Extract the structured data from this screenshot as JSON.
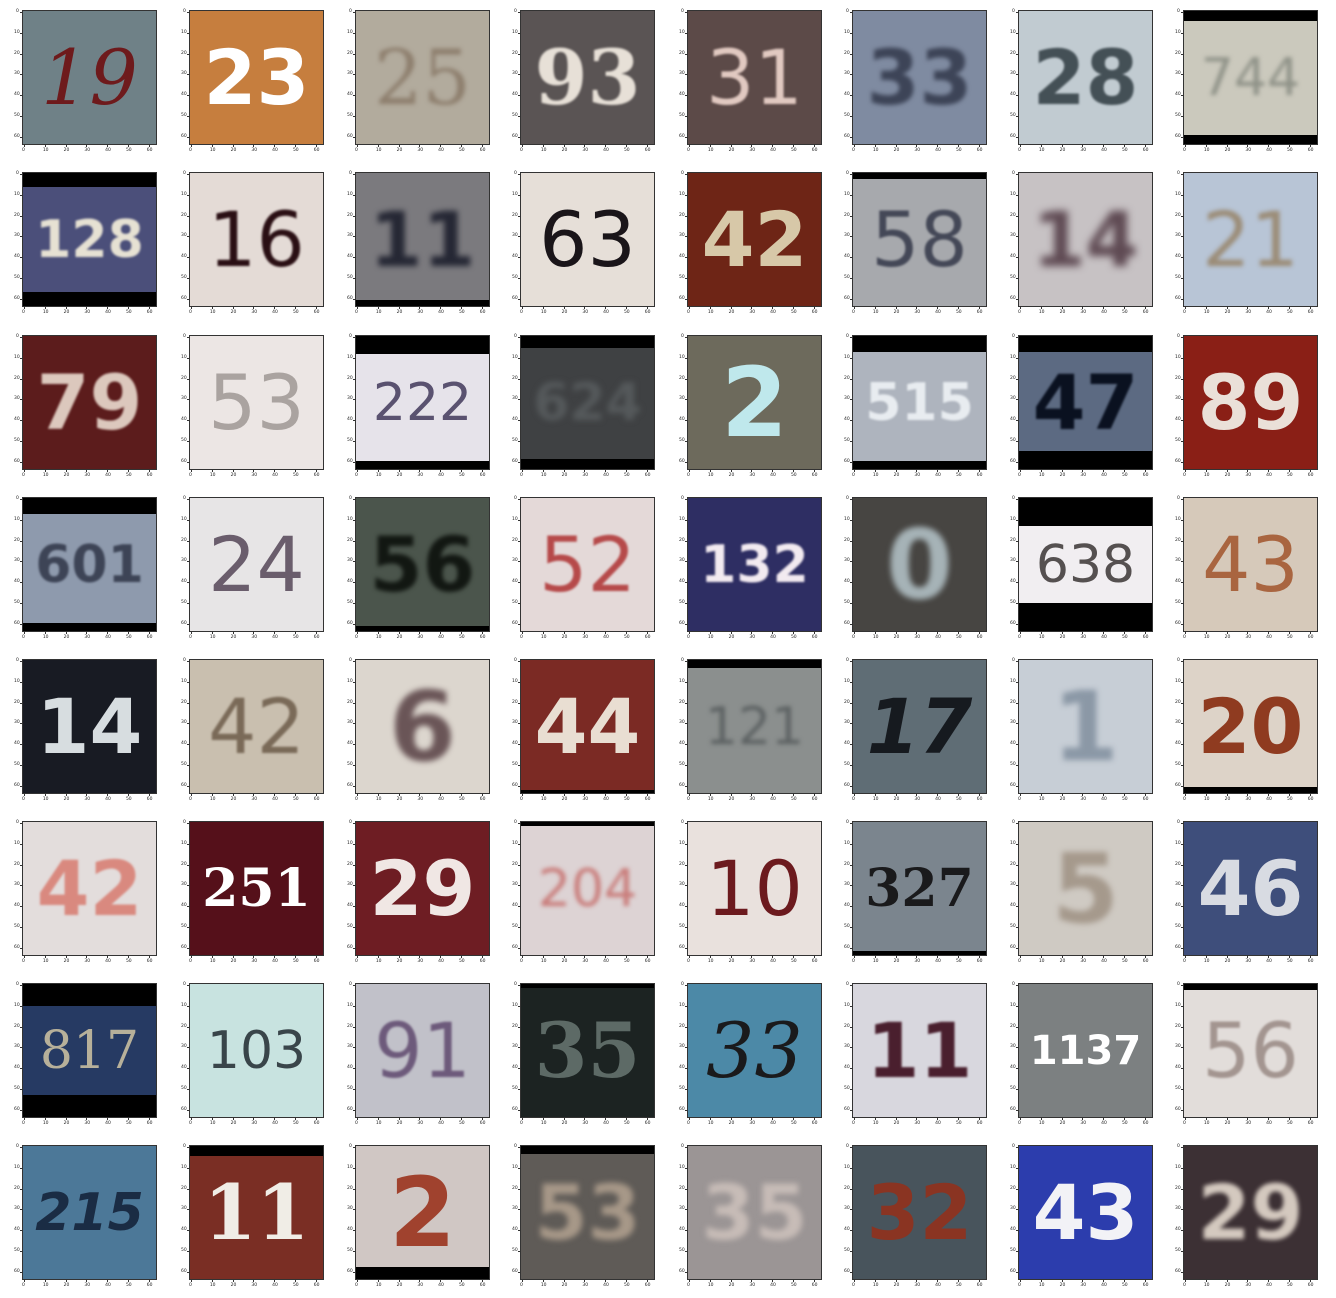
{
  "axis": {
    "x_ticks": [
      "0",
      "10",
      "20",
      "30",
      "40",
      "50",
      "60"
    ],
    "y_ticks": [
      "0",
      "10",
      "20",
      "30",
      "40",
      "50",
      "60"
    ]
  },
  "tiles": [
    {
      "label": "19",
      "bg": "#6f8187",
      "fg": "#6e1a1c",
      "style": "italic",
      "weight": "400",
      "family": "serif"
    },
    {
      "label": "23",
      "bg": "#c67e3e",
      "fg": "#ffffff",
      "style": "normal",
      "weight": "700",
      "family": "sans"
    },
    {
      "label": "25",
      "bg": "#b2ab9d",
      "fg": "#8e7f6e",
      "style": "normal",
      "weight": "400",
      "family": "serif",
      "blur": 2
    },
    {
      "label": "93",
      "bg": "#5a5454",
      "fg": "#e7e0d7",
      "style": "normal",
      "weight": "700",
      "family": "serif",
      "blur": 1
    },
    {
      "label": "31",
      "bg": "#5c4a48",
      "fg": "#e1c9c1",
      "style": "normal",
      "weight": "400",
      "family": "sans",
      "blur": 1
    },
    {
      "label": "33",
      "bg": "#7f8ba1",
      "fg": "#3d4457",
      "style": "normal",
      "weight": "700",
      "family": "sans",
      "blur": 2
    },
    {
      "label": "28",
      "bg": "#c1cbd1",
      "fg": "#445056",
      "style": "normal",
      "weight": "700",
      "family": "sans",
      "blur": 1
    },
    {
      "label": "744",
      "bg": "#cbc9bd",
      "fg": "#8f9288",
      "style": "normal",
      "weight": "400",
      "family": "sans",
      "blur": 2,
      "barTop": 10,
      "barBottom": 9
    },
    {
      "label": "128",
      "bg": "#4b4f7a",
      "fg": "#e6e1d3",
      "style": "normal",
      "weight": "700",
      "family": "sans",
      "blur": 1,
      "barTop": 14,
      "barBottom": 14
    },
    {
      "label": "16",
      "bg": "#e4dbd6",
      "fg": "#2a0f14",
      "style": "normal",
      "weight": "400",
      "family": "sans",
      "blur": 1
    },
    {
      "label": "11",
      "bg": "#7b7a7e",
      "fg": "#252734",
      "style": "normal",
      "weight": "700",
      "family": "sans",
      "blur": 3,
      "barBottom": 6
    },
    {
      "label": "63",
      "bg": "#e6dfd8",
      "fg": "#1a1519",
      "style": "normal",
      "weight": "400",
      "family": "sans"
    },
    {
      "label": "42",
      "bg": "#6e2516",
      "fg": "#d7c8a8",
      "style": "normal",
      "weight": "700",
      "family": "sans"
    },
    {
      "label": "58",
      "bg": "#a7a9ad",
      "fg": "#444857",
      "style": "normal",
      "weight": "400",
      "family": "sans",
      "blur": 1,
      "barTop": 6
    },
    {
      "label": "14",
      "bg": "#c7c2c4",
      "fg": "#5e4952",
      "style": "normal",
      "weight": "700",
      "family": "sans",
      "blur": 4
    },
    {
      "label": "21",
      "bg": "#b8c5d6",
      "fg": "#9b8c77",
      "style": "normal",
      "weight": "400",
      "family": "sans",
      "blur": 2
    },
    {
      "label": "79",
      "bg": "#5c1c1c",
      "fg": "#dcc8bd",
      "style": "normal",
      "weight": "700",
      "family": "sans",
      "blur": 1
    },
    {
      "label": "53",
      "bg": "#ece6e4",
      "fg": "#aaa3a0",
      "style": "normal",
      "weight": "400",
      "family": "sans"
    },
    {
      "label": "222",
      "bg": "#e6e3ea",
      "fg": "#5a5270",
      "style": "normal",
      "weight": "400",
      "family": "sans",
      "barTop": 18,
      "barBottom": 8
    },
    {
      "label": "624",
      "bg": "#3f4143",
      "fg": "#55595b",
      "style": "normal",
      "weight": "700",
      "family": "sans",
      "blur": 3,
      "barTop": 12,
      "barBottom": 10
    },
    {
      "label": "2",
      "bg": "#6d6a5c",
      "fg": "#bfe8ec",
      "style": "normal",
      "weight": "700",
      "family": "sans"
    },
    {
      "label": "515",
      "bg": "#aeb4be",
      "fg": "#e8ecf0",
      "style": "normal",
      "weight": "700",
      "family": "sans",
      "blur": 1,
      "barTop": 16,
      "barBottom": 8
    },
    {
      "label": "47",
      "bg": "#5c6a82",
      "fg": "#0a1120",
      "style": "normal",
      "weight": "700",
      "family": "sans",
      "blur": 1,
      "barTop": 16,
      "barBottom": 18
    },
    {
      "label": "89",
      "bg": "#8a1f16",
      "fg": "#eae0d8",
      "style": "normal",
      "weight": "700",
      "family": "sans"
    },
    {
      "label": "601",
      "bg": "#8e9aad",
      "fg": "#3d4456",
      "style": "normal",
      "weight": "700",
      "family": "sans",
      "blur": 1,
      "barTop": 16,
      "barBottom": 8
    },
    {
      "label": "24",
      "bg": "#e7e5e6",
      "fg": "#6a5d6c",
      "style": "normal",
      "weight": "400",
      "family": "sans"
    },
    {
      "label": "56",
      "bg": "#4b554c",
      "fg": "#121712",
      "style": "normal",
      "weight": "700",
      "family": "sans",
      "blur": 2,
      "barBottom": 5
    },
    {
      "label": "52",
      "bg": "#e4d9d8",
      "fg": "#b64a4a",
      "style": "normal",
      "weight": "400",
      "family": "sans",
      "blur": 1
    },
    {
      "label": "132",
      "bg": "#2e2e63",
      "fg": "#f2eaf0",
      "style": "normal",
      "weight": "700",
      "family": "sans",
      "blur": 1
    },
    {
      "label": "0",
      "bg": "#474542",
      "fg": "#a6b3b7",
      "style": "normal",
      "weight": "700",
      "family": "sans",
      "blur": 3
    },
    {
      "label": "638",
      "bg": "#f1eef1",
      "fg": "#555050",
      "style": "normal",
      "weight": "400",
      "family": "sans",
      "barTop": 28,
      "barBottom": 28
    },
    {
      "label": "43",
      "bg": "#d6c9ba",
      "fg": "#a96540",
      "style": "normal",
      "weight": "400",
      "family": "sans"
    },
    {
      "label": "14",
      "bg": "#181b23",
      "fg": "#d7dde0",
      "style": "normal",
      "weight": "700",
      "family": "sans"
    },
    {
      "label": "42",
      "bg": "#c9bfaf",
      "fg": "#7a6a58",
      "style": "normal",
      "weight": "400",
      "family": "sans",
      "blur": 1
    },
    {
      "label": "6",
      "bg": "#dcd6ce",
      "fg": "#6a5557",
      "style": "normal",
      "weight": "700",
      "family": "sans",
      "blur": 3
    },
    {
      "label": "44",
      "bg": "#7b2a24",
      "fg": "#e9ded2",
      "style": "normal",
      "weight": "700",
      "family": "sans",
      "barBottom": 3
    },
    {
      "label": "121",
      "bg": "#8b8f8e",
      "fg": "#5d6263",
      "style": "normal",
      "weight": "400",
      "family": "sans",
      "blur": 2,
      "barTop": 8
    },
    {
      "label": "17",
      "bg": "#5f6d75",
      "fg": "#161a1f",
      "style": "italic",
      "weight": "700",
      "family": "sans"
    },
    {
      "label": "1",
      "bg": "#c7ced6",
      "fg": "#8b98a6",
      "style": "normal",
      "weight": "700",
      "family": "sans",
      "blur": 3
    },
    {
      "label": "20",
      "bg": "#ddd3c8",
      "fg": "#8f3b20",
      "style": "normal",
      "weight": "700",
      "family": "sans",
      "barBottom": 6
    },
    {
      "label": "42",
      "bg": "#e3dddc",
      "fg": "#d9897f",
      "style": "normal",
      "weight": "700",
      "family": "sans",
      "blur": 1
    },
    {
      "label": "251",
      "bg": "#55101a",
      "fg": "#ffffff",
      "style": "normal",
      "weight": "700",
      "family": "serif"
    },
    {
      "label": "29",
      "bg": "#6e1d23",
      "fg": "#f0e7e4",
      "style": "normal",
      "weight": "700",
      "family": "sans"
    },
    {
      "label": "204",
      "bg": "#ddd3d4",
      "fg": "#c97c7a",
      "style": "normal",
      "weight": "400",
      "family": "sans",
      "blur": 2,
      "barTop": 4
    },
    {
      "label": "10",
      "bg": "#e9e1dd",
      "fg": "#6c1a1e",
      "style": "normal",
      "weight": "400",
      "family": "sans"
    },
    {
      "label": "327",
      "bg": "#7b858e",
      "fg": "#1a1a1c",
      "style": "normal",
      "weight": "700",
      "family": "serif",
      "barBottom": 4
    },
    {
      "label": "5",
      "bg": "#cfcac3",
      "fg": "#a5998c",
      "style": "normal",
      "weight": "700",
      "family": "sans",
      "blur": 3
    },
    {
      "label": "46",
      "bg": "#3e4e7b",
      "fg": "#d8dbe2",
      "style": "normal",
      "weight": "700",
      "family": "sans"
    },
    {
      "label": "817",
      "bg": "#263a63",
      "fg": "#b7b09a",
      "style": "normal",
      "weight": "400",
      "family": "serif",
      "barTop": 22,
      "barBottom": 22
    },
    {
      "label": "103",
      "bg": "#c8e3e0",
      "fg": "#39454a",
      "style": "normal",
      "weight": "400",
      "family": "sans"
    },
    {
      "label": "91",
      "bg": "#c1c1c9",
      "fg": "#6d5a7b",
      "style": "normal",
      "weight": "400",
      "family": "sans",
      "blur": 1
    },
    {
      "label": "35",
      "bg": "#1c2322",
      "fg": "#5d6a66",
      "style": "normal",
      "weight": "700",
      "family": "serif",
      "barTop": 4
    },
    {
      "label": "33",
      "bg": "#4c89a7",
      "fg": "#1a1a1c",
      "style": "italic",
      "weight": "400",
      "family": "serif"
    },
    {
      "label": "11",
      "bg": "#d8d7de",
      "fg": "#4a1f2e",
      "style": "normal",
      "weight": "700",
      "family": "sans",
      "blur": 1
    },
    {
      "label": "1137",
      "bg": "#7c8081",
      "fg": "#ffffff",
      "style": "normal",
      "weight": "700",
      "family": "sans"
    },
    {
      "label": "56",
      "bg": "#e2ddda",
      "fg": "#a39590",
      "style": "normal",
      "weight": "400",
      "family": "sans",
      "blur": 1,
      "barTop": 6
    },
    {
      "label": "215",
      "bg": "#4c7898",
      "fg": "#1a2c44",
      "style": "italic",
      "weight": "700",
      "family": "sans"
    },
    {
      "label": "11",
      "bg": "#7a2e24",
      "fg": "#f0ede6",
      "style": "normal",
      "weight": "700",
      "family": "serif",
      "barTop": 10
    },
    {
      "label": "2",
      "bg": "#d0c7c4",
      "fg": "#a0422e",
      "style": "normal",
      "weight": "700",
      "family": "sans",
      "barBottom": 12
    },
    {
      "label": "53",
      "bg": "#5f5b57",
      "fg": "#a79888",
      "style": "normal",
      "weight": "700",
      "family": "sans",
      "blur": 3,
      "barTop": 8
    },
    {
      "label": "35",
      "bg": "#9b9595",
      "fg": "#c7bcb7",
      "style": "normal",
      "weight": "700",
      "family": "sans",
      "blur": 3
    },
    {
      "label": "32",
      "bg": "#48545c",
      "fg": "#8a3422",
      "style": "normal",
      "weight": "700",
      "family": "sans"
    },
    {
      "label": "43",
      "bg": "#2c3dad",
      "fg": "#f2f2f6",
      "style": "normal",
      "weight": "700",
      "family": "sans"
    },
    {
      "label": "29",
      "bg": "#3c3034",
      "fg": "#d4c9bf",
      "style": "normal",
      "weight": "700",
      "family": "sans",
      "blur": 2
    }
  ]
}
